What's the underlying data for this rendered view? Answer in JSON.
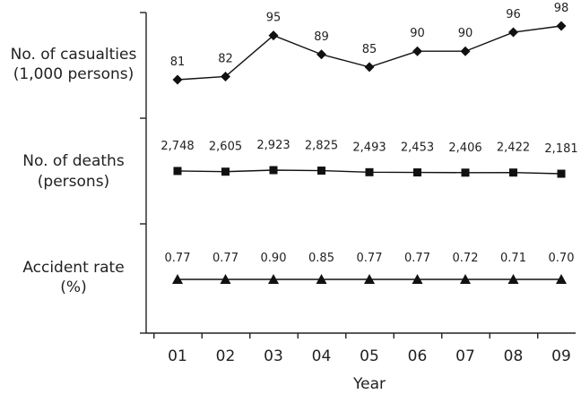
{
  "chart_data": {
    "type": "line",
    "xlabel": "Year",
    "categories": [
      "01",
      "02",
      "03",
      "04",
      "05",
      "06",
      "07",
      "08",
      "09"
    ],
    "series": [
      {
        "name": "No. of casualties (1,000 persons)",
        "label_lines": [
          "No. of casualties",
          "(1,000 persons)"
        ],
        "marker": "diamond",
        "values": [
          81,
          82,
          95,
          89,
          85,
          90,
          90,
          96,
          98
        ],
        "value_labels": [
          "81",
          "82",
          "95",
          "89",
          "85",
          "90",
          "90",
          "96",
          "98"
        ]
      },
      {
        "name": "No. of deaths (persons)",
        "label_lines": [
          "No. of deaths",
          "(persons)"
        ],
        "marker": "square",
        "values": [
          2748,
          2605,
          2923,
          2825,
          2493,
          2453,
          2406,
          2422,
          2181
        ],
        "value_labels": [
          "2,748",
          "2,605",
          "2,923",
          "2,825",
          "2,493",
          "2,453",
          "2,406",
          "2,422",
          "2,181"
        ]
      },
      {
        "name": "Accident rate (%)",
        "label_lines": [
          "Accident rate",
          "(%)"
        ],
        "marker": "triangle",
        "values": [
          0.77,
          0.77,
          0.9,
          0.85,
          0.77,
          0.77,
          0.72,
          0.71,
          0.7
        ],
        "value_labels": [
          "0.77",
          "0.77",
          "0.90",
          "0.85",
          "0.77",
          "0.77",
          "0.72",
          "0.71",
          "0.70"
        ]
      }
    ]
  }
}
